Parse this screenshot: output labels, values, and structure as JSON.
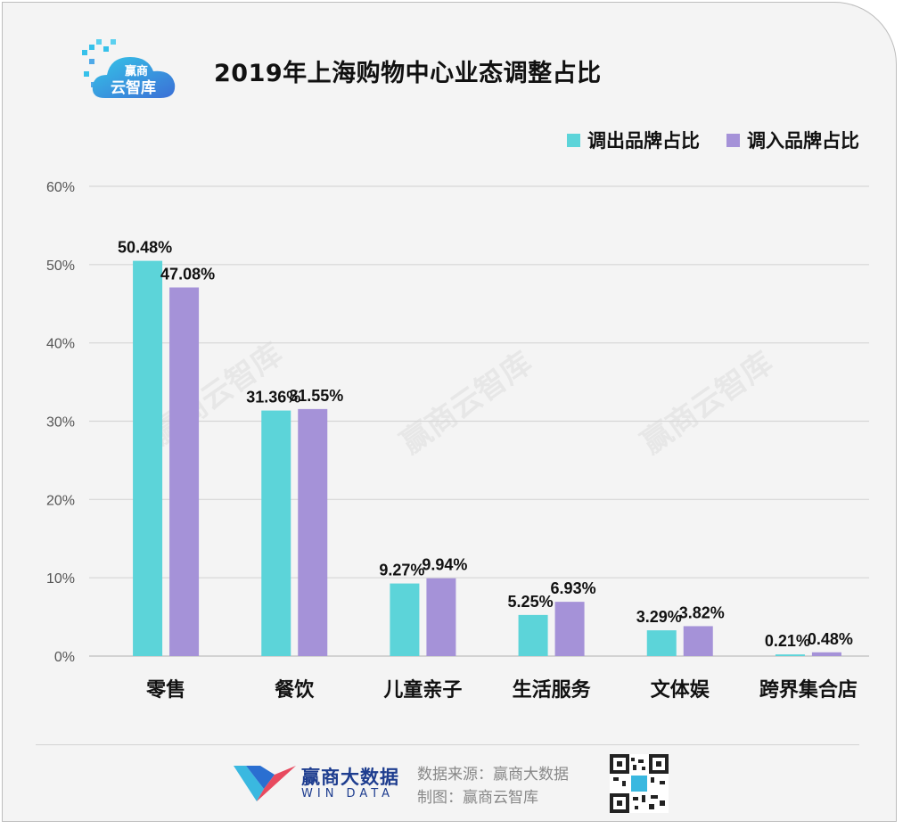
{
  "header": {
    "logo_text_top": "赢商",
    "logo_text_bottom": "云智库",
    "title": "2019年上海购物中心业态调整占比"
  },
  "watermark": "赢商云智库",
  "colors": {
    "out": "#5cd4d9",
    "in": "#a592d8"
  },
  "chart_data": {
    "type": "bar",
    "title": "2019年上海购物中心业态调整占比",
    "categories": [
      "零售",
      "餐饮",
      "儿童亲子",
      "生活服务",
      "文体娱",
      "跨界集合店"
    ],
    "series": [
      {
        "name": "调出品牌占比",
        "values": [
          50.48,
          31.36,
          9.27,
          5.25,
          3.29,
          0.21
        ],
        "labels": [
          "50.48%",
          "31.36%",
          "9.27%",
          "5.25%",
          "3.29%",
          "0.21%"
        ]
      },
      {
        "name": "调入品牌占比",
        "values": [
          47.08,
          31.55,
          9.94,
          6.93,
          3.82,
          0.48
        ],
        "labels": [
          "47.08%",
          "31.55%",
          "9.94%",
          "6.93%",
          "3.82%",
          "0.48%"
        ]
      }
    ],
    "ylim": [
      0,
      60
    ],
    "yticks": [
      "0%",
      "10%",
      "20%",
      "30%",
      "40%",
      "50%",
      "60%"
    ],
    "grid": true,
    "legend": "top-right"
  },
  "footer": {
    "brand_cn": "赢商大数据",
    "brand_en": "WIN DATA",
    "source": "数据来源：赢商大数据",
    "maker": "制图：赢商云智库"
  }
}
